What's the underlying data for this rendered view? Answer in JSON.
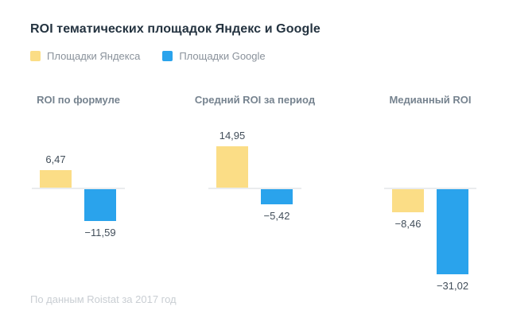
{
  "chart_data": {
    "type": "bar",
    "title": "ROI тематических площадок Яндекс и Google",
    "legend": [
      {
        "name": "Площадки Яндекса",
        "color": "#fbdd86"
      },
      {
        "name": "Площадки Google",
        "color": "#2aa3ec"
      }
    ],
    "groups": [
      {
        "title": "ROI по формуле",
        "values": [
          6.47,
          -11.59
        ],
        "labels": [
          "6,47",
          "−11,59"
        ]
      },
      {
        "title": "Средний ROI за период",
        "values": [
          14.95,
          -5.42
        ],
        "labels": [
          "14,95",
          "−5,42"
        ]
      },
      {
        "title": "Медианный ROI",
        "values": [
          -8.46,
          -31.02
        ],
        "labels": [
          "−8,46",
          "−31,02"
        ]
      }
    ],
    "ylim": [
      -35,
      20
    ],
    "grid": "off",
    "legend_position": "top-left",
    "footnote": "По данным Roistat за 2017 год"
  }
}
